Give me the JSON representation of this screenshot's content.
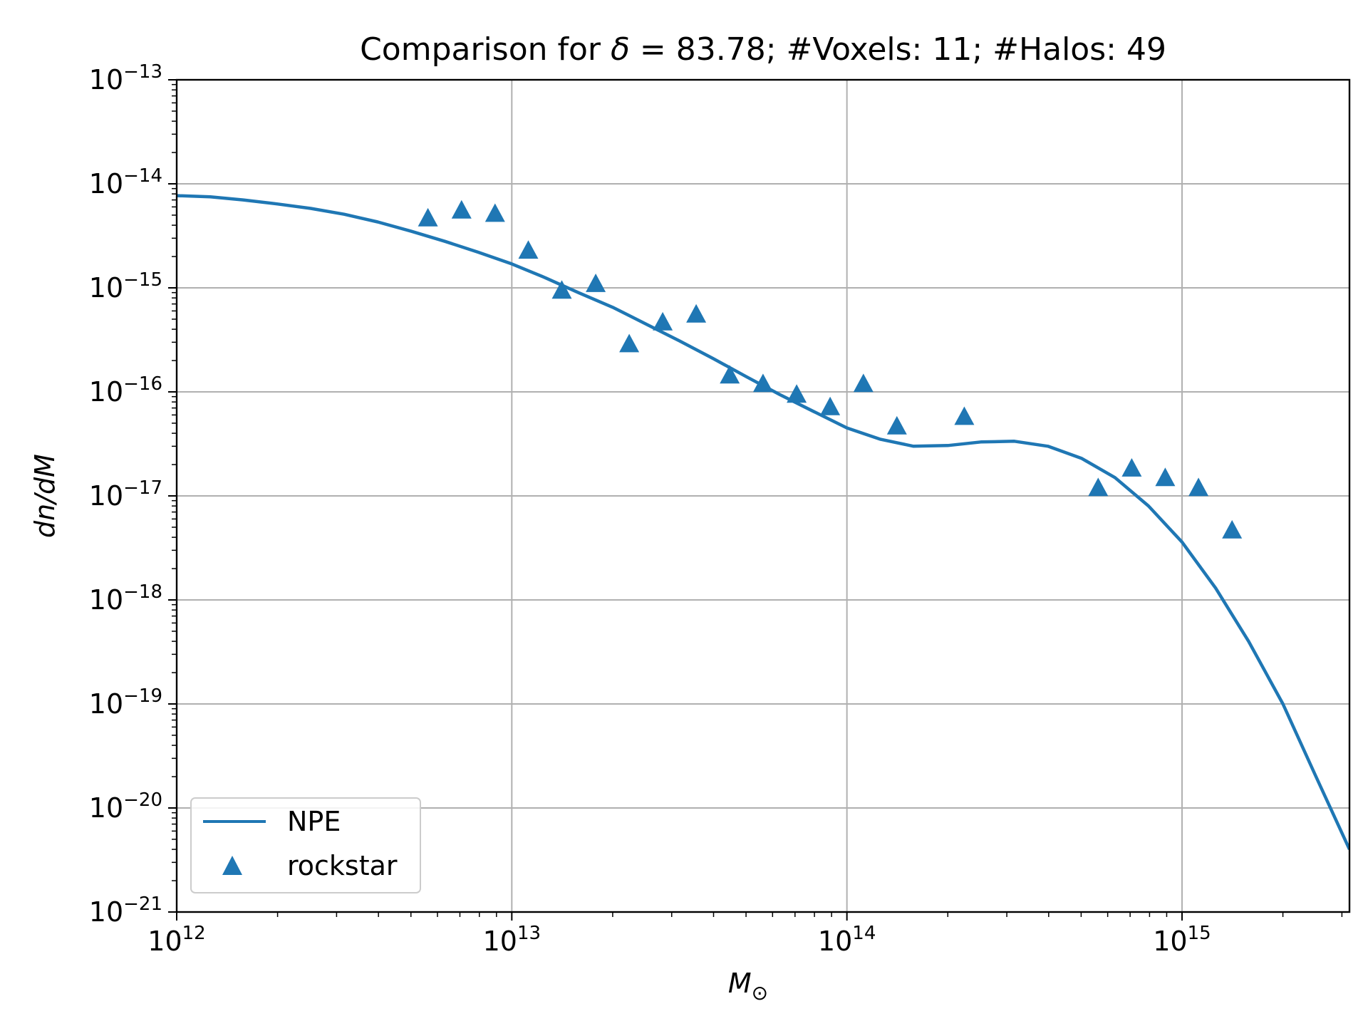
{
  "chart_data": {
    "type": "line",
    "title_prefix": "Comparison for ",
    "title_symbol": "δ",
    "title_suffix": " = 83.78; #Voxels: 11; #Halos: 49",
    "xlabel_main": "M",
    "xlabel_sub": "⊙",
    "ylabel": "dn/dM",
    "xscale": "log",
    "yscale": "log",
    "xlim": [
      1000000000000.0,
      3160000000000000.0
    ],
    "ylim": [
      1e-21,
      1e-13
    ],
    "grid": true,
    "legend_position": "lower-left",
    "x_ticks": [
      {
        "base": "10",
        "exp": "12",
        "value": 1000000000000.0
      },
      {
        "base": "10",
        "exp": "13",
        "value": 10000000000000.0
      },
      {
        "base": "10",
        "exp": "14",
        "value": 100000000000000.0
      },
      {
        "base": "10",
        "exp": "15",
        "value": 1000000000000000.0
      }
    ],
    "y_ticks": [
      {
        "base": "10",
        "exp": "−13",
        "value": 1e-13
      },
      {
        "base": "10",
        "exp": "−14",
        "value": 1e-14
      },
      {
        "base": "10",
        "exp": "−15",
        "value": 1e-15
      },
      {
        "base": "10",
        "exp": "−16",
        "value": 1e-16
      },
      {
        "base": "10",
        "exp": "−17",
        "value": 1e-17
      },
      {
        "base": "10",
        "exp": "−18",
        "value": 1e-18
      },
      {
        "base": "10",
        "exp": "−19",
        "value": 1e-19
      },
      {
        "base": "10",
        "exp": "−20",
        "value": 1e-20
      },
      {
        "base": "10",
        "exp": "−21",
        "value": 1e-21
      }
    ],
    "series": [
      {
        "name": "NPE",
        "kind": "line",
        "color": "#1f77b4",
        "x": [
          1000000000000.0,
          1260000000000.0,
          1580000000000.0,
          2000000000000.0,
          2510000000000.0,
          3160000000000.0,
          3980000000000.0,
          5010000000000.0,
          6310000000000.0,
          7940000000000.0,
          10000000000000.0,
          12600000000000.0,
          15800000000000.0,
          20000000000000.0,
          25100000000000.0,
          31600000000000.0,
          39800000000000.0,
          50100000000000.0,
          63100000000000.0,
          79400000000000.0,
          100000000000000.0,
          126000000000000.0,
          158000000000000.0,
          200000000000000.0,
          251000000000000.0,
          316000000000000.0,
          398000000000000.0,
          501000000000000.0,
          631000000000000.0,
          794000000000000.0,
          1000000000000000.0,
          1260000000000000.0,
          1580000000000000.0,
          2000000000000000.0,
          2510000000000000.0,
          3160000000000000.0
        ],
        "y": [
          7.7e-15,
          7.5e-15,
          7e-15,
          6.4e-15,
          5.8e-15,
          5.1e-15,
          4.3e-15,
          3.5e-15,
          2.8e-15,
          2.2e-15,
          1.7e-15,
          1.25e-15,
          9e-16,
          6.5e-16,
          4.5e-16,
          3.1e-16,
          2.1e-16,
          1.4e-16,
          9.4e-17,
          6.5e-17,
          4.5e-17,
          3.5e-17,
          3e-17,
          3.05e-17,
          3.3e-17,
          3.35e-17,
          3e-17,
          2.3e-17,
          1.5e-17,
          8e-18,
          3.6e-18,
          1.3e-18,
          4e-19,
          1e-19,
          2e-20,
          4e-21
        ]
      },
      {
        "name": "rockstar",
        "kind": "scatter",
        "marker": "triangle",
        "color": "#1f77b4",
        "x": [
          5620000000000.0,
          7080000000000.0,
          8910000000000.0,
          11200000000000.0,
          14100000000000.0,
          17800000000000.0,
          22400000000000.0,
          28200000000000.0,
          35500000000000.0,
          44700000000000.0,
          56200000000000.0,
          70800000000000.0,
          89100000000000.0,
          112000000000000.0,
          141000000000000.0,
          224000000000000.0,
          562000000000000.0,
          708000000000000.0,
          891000000000000.0,
          1120000000000000.0,
          1410000000000000.0
        ],
        "y": [
          4.7e-15,
          5.6e-15,
          5.2e-15,
          2.3e-15,
          9.5e-16,
          1.1e-15,
          2.9e-16,
          4.7e-16,
          5.6e-16,
          1.45e-16,
          1.2e-16,
          9.5e-17,
          7.2e-17,
          1.2e-16,
          4.7e-17,
          5.8e-17,
          1.2e-17,
          1.85e-17,
          1.5e-17,
          1.2e-17,
          4.7e-18
        ]
      }
    ]
  }
}
